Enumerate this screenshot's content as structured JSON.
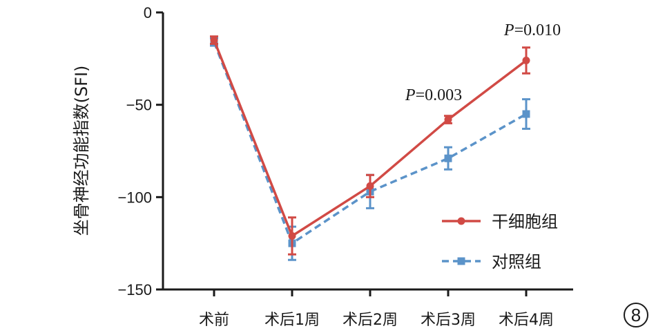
{
  "chart_data": {
    "type": "line",
    "ylabel": "坐骨神经功能指数(SFI)",
    "xlabel": "",
    "categories": [
      "术前",
      "术后1周",
      "术后2周",
      "术后3周",
      "术后4周"
    ],
    "ylim": [
      -150,
      0
    ],
    "yticks": [
      0,
      -50,
      -100,
      -150
    ],
    "series": [
      {
        "name": "干细胞组",
        "values": [
          -15,
          -121,
          -94,
          -58,
          -26
        ],
        "errors": [
          2,
          10,
          6,
          2,
          7
        ],
        "color": "#d14a45",
        "line_style": "solid",
        "marker": "circle"
      },
      {
        "name": "对照组",
        "values": [
          -16,
          -125,
          -97,
          -79,
          -55
        ],
        "errors": [
          2,
          9,
          9,
          6,
          8
        ],
        "color": "#5b93c9",
        "line_style": "dashed",
        "marker": "square"
      }
    ],
    "annotations": [
      {
        "category": "术后3周",
        "italic": "P",
        "rest": "=0.003"
      },
      {
        "category": "术后4周",
        "italic": "P",
        "rest": "=0.010"
      }
    ],
    "legend_position": "bottom-right",
    "grid": false
  },
  "panel_label": "8"
}
